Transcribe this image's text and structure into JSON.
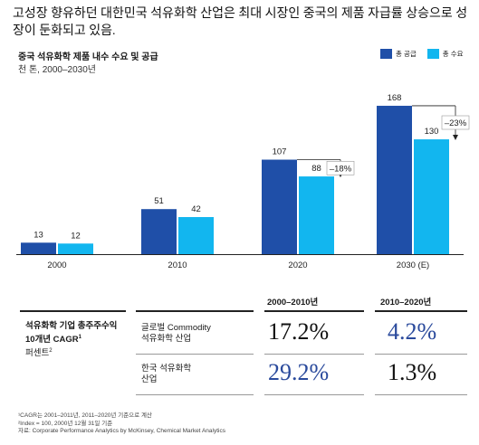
{
  "headline": "고성장 향유하던 대한민국 석유화학 산업은 최대 시장인 중국의 제품 자급률 상승으로 성장이 둔화되고 있음.",
  "chart_data": {
    "type": "bar",
    "title": "중국 석유화학 제품 내수 수요 및 공급",
    "subtitle": "천 톤, 2000–2030년",
    "categories": [
      "2000",
      "2010",
      "2020",
      "2030 (E)"
    ],
    "series": [
      {
        "name": "총 공급",
        "values": [
          13,
          51,
          107,
          168
        ],
        "color": "#1f4fa8"
      },
      {
        "name": "총 수요",
        "values": [
          12,
          42,
          88,
          130
        ],
        "color": "#12b6ef"
      }
    ],
    "ylim": [
      0,
      170
    ],
    "legend_position": "top-right",
    "annotations": [
      {
        "category": "2020",
        "text": "–18%"
      },
      {
        "category": "2030 (E)",
        "text": "–23%"
      }
    ]
  },
  "table": {
    "col1": "2000–2010년",
    "col2": "2010–2020년",
    "metric": "석유화학 기업 총주주수익",
    "metric_line2": "10개년 CAGR",
    "metric_line2_sup": "1",
    "metric_unit": "퍼센트",
    "metric_unit_sup": "2",
    "rows": [
      {
        "label_line1": "글로벌 Commodity",
        "label_line2": "석유화학 산업",
        "v1": "17.2%",
        "v2": "4.2%"
      },
      {
        "label_line1": "한국 석유화학",
        "label_line2": "산업",
        "v1": "29.2%",
        "v2": "1.3%"
      }
    ],
    "colors": {
      "dark": "#111111",
      "blue": "#2a4a9c"
    }
  },
  "footnotes": [
    "¹CAGR는 2001–2011년, 2011–2020년 기준으로 계산",
    "²Index = 100, 2000년 12월 31일 기준",
    "자료: Corporate Performance Analytics by McKinsey, Chemical Market Analytics"
  ]
}
